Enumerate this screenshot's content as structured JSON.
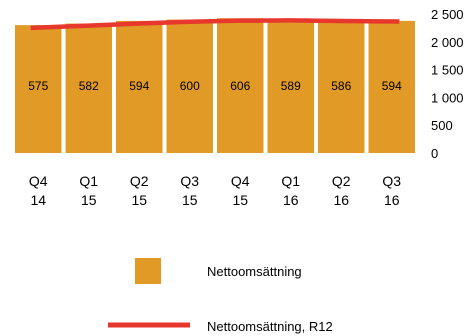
{
  "chart_data": {
    "type": "bar",
    "categories": [
      [
        "Q4",
        "14"
      ],
      [
        "Q1",
        "15"
      ],
      [
        "Q2",
        "15"
      ],
      [
        "Q3",
        "15"
      ],
      [
        "Q4",
        "15"
      ],
      [
        "Q1",
        "16"
      ],
      [
        "Q2",
        "16"
      ],
      [
        "Q3",
        "16"
      ]
    ],
    "series": [
      {
        "name": "Nettoomsättning",
        "type": "bar",
        "values": [
          575,
          582,
          594,
          600,
          606,
          589,
          586,
          594
        ],
        "value_labels": [
          "575",
          "582",
          "594",
          "600",
          "606",
          "589",
          "586",
          "594"
        ],
        "unit_note": "bar height read on right axis (×4)",
        "axis_values": [
          2300,
          2328,
          2376,
          2400,
          2424,
          2356,
          2344,
          2376
        ]
      },
      {
        "name": "Nettoomsättning, R12",
        "type": "line",
        "values": [
          2250,
          2290,
          2330,
          2360,
          2380,
          2385,
          2375,
          2365
        ]
      }
    ],
    "y_axis": {
      "position": "right",
      "ticks": [
        "0",
        "500",
        "1 000",
        "1 500",
        "2 000",
        "2 500"
      ],
      "tick_values": [
        0,
        500,
        1000,
        1500,
        2000,
        2500
      ],
      "ylim": [
        0,
        2500
      ]
    },
    "colors": {
      "bar": "#e09a25",
      "line": "#e8372c"
    },
    "legend": {
      "placement": "bottom",
      "entries": [
        {
          "label": "Nettoomsättning",
          "swatch": "bar"
        },
        {
          "label": "Nettoomsättning, R12",
          "swatch": "line"
        }
      ]
    },
    "grid": false
  }
}
